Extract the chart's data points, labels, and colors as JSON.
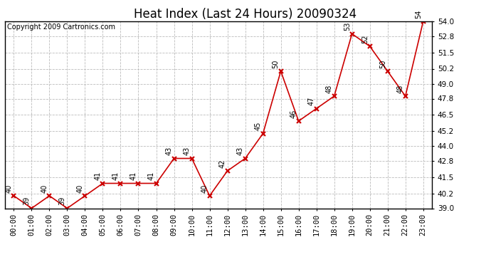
{
  "title": "Heat Index (Last 24 Hours) 20090324",
  "copyright": "Copyright 2009 Cartronics.com",
  "x_labels": [
    "00:00",
    "01:00",
    "02:00",
    "03:00",
    "04:00",
    "05:00",
    "06:00",
    "07:00",
    "08:00",
    "09:00",
    "10:00",
    "11:00",
    "12:00",
    "13:00",
    "14:00",
    "15:00",
    "16:00",
    "17:00",
    "18:00",
    "19:00",
    "20:00",
    "21:00",
    "22:00",
    "23:00"
  ],
  "y_values": [
    40,
    39,
    40,
    39,
    40,
    41,
    41,
    41,
    41,
    43,
    43,
    40,
    42,
    43,
    45,
    50,
    46,
    47,
    48,
    53,
    52,
    50,
    48,
    54
  ],
  "ylim": [
    39.0,
    54.0
  ],
  "yticks": [
    39.0,
    40.2,
    41.5,
    42.8,
    44.0,
    45.2,
    46.5,
    47.8,
    49.0,
    50.2,
    51.5,
    52.8,
    54.0
  ],
  "line_color": "#cc0000",
  "marker_color": "#cc0000",
  "bg_color": "#ffffff",
  "plot_bg_color": "#ffffff",
  "grid_color": "#bbbbbb",
  "title_fontsize": 12,
  "copyright_fontsize": 7,
  "label_fontsize": 7.5,
  "annotation_fontsize": 7
}
